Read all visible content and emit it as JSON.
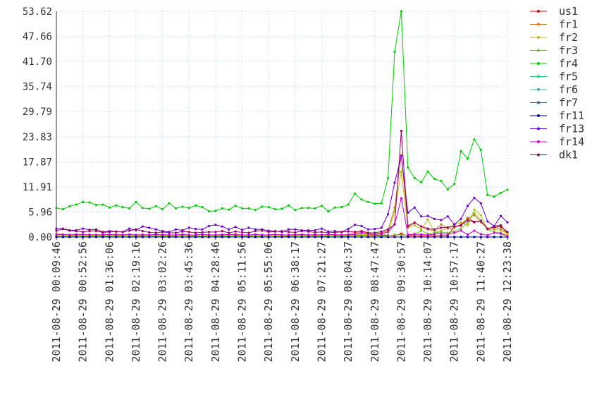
{
  "chart_data": {
    "type": "line",
    "categories": [
      "2011-08-29 00:09:46",
      null,
      null,
      null,
      "2011-08-29 00:52:56",
      null,
      null,
      null,
      "2011-08-29 01:36:06",
      null,
      null,
      null,
      "2011-08-29 02:19:16",
      null,
      null,
      null,
      "2011-08-29 03:02:26",
      null,
      null,
      null,
      "2011-08-29 03:45:36",
      null,
      null,
      null,
      "2011-08-29 04:28:46",
      null,
      null,
      null,
      "2011-08-29 05:11:56",
      null,
      null,
      null,
      "2011-08-29 05:55:06",
      null,
      null,
      null,
      "2011-08-29 06:38:17",
      null,
      null,
      null,
      "2011-08-29 07:21:27",
      null,
      null,
      null,
      "2011-08-29 08:04:37",
      null,
      null,
      null,
      "2011-08-29 08:47:47",
      null,
      null,
      null,
      "2011-08-29 09:30:57",
      null,
      null,
      null,
      "2011-08-29 10:14:07",
      null,
      null,
      null,
      "2011-08-29 10:57:17",
      null,
      null,
      null,
      "2011-08-29 11:40:27",
      null,
      null,
      null,
      "2011-08-29 12:23:38"
    ],
    "ylim": [
      0,
      53.62
    ],
    "yticks": [
      {
        "value": 0,
        "label": "0.00"
      },
      5.96,
      11.91,
      17.87,
      23.83,
      29.79,
      35.74,
      {
        "value": 41.7,
        "label": "41.70"
      },
      47.66,
      53.62
    ],
    "grid": true,
    "legend": "right",
    "series": [
      {
        "name": "us1",
        "color": "#cc0000",
        "values": [
          0.3,
          0.2,
          0.2,
          0.3,
          0.2,
          0.2,
          0.3,
          0.2,
          0.2,
          0.2,
          0.3,
          0.2,
          0.2,
          0.2,
          0.3,
          0.2,
          0.2,
          0.2,
          0.2,
          0.3,
          0.2,
          0.2,
          0.2,
          0.3,
          0.2,
          0.2,
          0.2,
          0.3,
          0.2,
          0.2,
          0.2,
          0.2,
          0.3,
          0.2,
          0.2,
          0.2,
          0.2,
          0.3,
          0.2,
          0.2,
          0.2,
          0.2,
          0.3,
          0.2,
          0.2,
          0.3,
          0.4,
          0.3,
          0.3,
          0.5,
          0.4,
          0.3,
          0.8,
          0.2,
          0.3,
          0.2,
          0.3,
          0.2,
          0.4,
          0.3,
          2.5,
          2.7,
          4.5,
          3.6,
          3.8,
          1.8,
          2.6,
          2.8,
          0.8
        ]
      },
      {
        "name": "fr1",
        "color": "#cc7a22",
        "values": [
          0.8,
          0.6,
          0.5,
          0.7,
          0.5,
          0.6,
          0.5,
          0.6,
          0.5,
          0.7,
          0.5,
          0.6,
          0.5,
          0.6,
          0.5,
          0.5,
          0.6,
          0.5,
          0.5,
          0.6,
          0.5,
          0.5,
          0.6,
          0.5,
          0.5,
          0.6,
          0.5,
          0.7,
          0.5,
          0.5,
          0.6,
          0.5,
          0.5,
          0.6,
          0.5,
          0.5,
          0.6,
          0.5,
          0.5,
          0.6,
          0.5,
          0.5,
          0.6,
          0.5,
          0.6,
          1.0,
          1.2,
          0.8,
          0.7,
          1.0,
          1.5,
          7.0,
          19.5,
          2.8,
          3.4,
          2.5,
          1.8,
          1.5,
          3.0,
          2.0,
          2.2,
          3.0,
          4.4,
          5.2,
          3.5,
          2.0,
          2.3,
          2.0,
          0.8
        ]
      },
      {
        "name": "fr2",
        "color": "#bbbb11",
        "values": [
          0.3,
          0.3,
          0.3,
          0.3,
          0.3,
          0.3,
          0.3,
          0.3,
          0.3,
          0.3,
          0.3,
          0.3,
          0.3,
          0.3,
          0.3,
          0.3,
          0.3,
          0.3,
          0.3,
          0.3,
          0.3,
          0.3,
          0.3,
          0.3,
          0.3,
          0.3,
          0.3,
          0.3,
          0.3,
          0.3,
          0.3,
          0.3,
          0.3,
          0.3,
          0.3,
          0.3,
          0.3,
          0.3,
          0.3,
          0.3,
          0.3,
          0.3,
          0.3,
          0.3,
          0.3,
          0.5,
          0.7,
          0.5,
          0.5,
          0.8,
          1.2,
          6.0,
          15.5,
          2.2,
          2.8,
          1.8,
          4.2,
          1.2,
          1.5,
          2.2,
          3.0,
          3.5,
          2.8,
          6.5,
          5.2,
          1.8,
          1.8,
          1.6,
          0.8
        ]
      },
      {
        "name": "fr3",
        "color": "#77bb22",
        "values": [
          0.2,
          0.2,
          0.2,
          0.2,
          0.2,
          0.2,
          0.2,
          0.2,
          0.2,
          0.2,
          0.2,
          0.2,
          0.2,
          0.2,
          0.2,
          0.2,
          0.2,
          0.2,
          0.2,
          0.2,
          0.2,
          0.2,
          0.2,
          0.2,
          0.2,
          0.2,
          0.2,
          0.2,
          0.2,
          0.2,
          0.2,
          0.2,
          0.2,
          0.2,
          0.2,
          0.2,
          0.2,
          0.2,
          0.2,
          0.2,
          0.2,
          0.2,
          0.2,
          0.2,
          0.2,
          0.2,
          0.3,
          0.2,
          0.2,
          0.2,
          0.3,
          0.5,
          0.5,
          0.4,
          0.6,
          1.5,
          0.8,
          1.0,
          1.2,
          1.0,
          1.3,
          2.0,
          3.5,
          5.6,
          4.0,
          1.8,
          1.2,
          1.0,
          0.3
        ]
      },
      {
        "name": "fr4",
        "color": "#00cc00",
        "values": [
          6.9,
          6.6,
          7.3,
          7.7,
          8.3,
          8.2,
          7.6,
          7.7,
          7.0,
          7.5,
          7.1,
          6.8,
          8.3,
          6.9,
          6.7,
          7.3,
          6.6,
          8.0,
          6.8,
          7.2,
          6.9,
          7.5,
          7.1,
          6.1,
          6.2,
          6.8,
          6.5,
          7.4,
          6.8,
          6.8,
          6.4,
          7.2,
          7.1,
          6.6,
          6.7,
          7.5,
          6.4,
          6.9,
          6.9,
          6.8,
          7.4,
          6.1,
          7.0,
          7.1,
          7.7,
          10.3,
          8.9,
          8.3,
          7.9,
          8.0,
          14.0,
          44.0,
          53.62,
          16.5,
          14.0,
          13.0,
          15.5,
          13.8,
          13.3,
          11.3,
          12.6,
          20.4,
          18.6,
          23.2,
          20.7,
          10.0,
          9.6,
          10.5,
          11.2
        ]
      },
      {
        "name": "fr5",
        "color": "#22cc77",
        "values": [
          0,
          0,
          0,
          0,
          0,
          0,
          0,
          0,
          0,
          0,
          0,
          0,
          0,
          0,
          0,
          0,
          0,
          0,
          0,
          0,
          0,
          0,
          0,
          0,
          0,
          0,
          0,
          0,
          0,
          0,
          0,
          0,
          0,
          0,
          0,
          0,
          0,
          0,
          0,
          0,
          0,
          0,
          0,
          0,
          0,
          0,
          0,
          0,
          0,
          0,
          0,
          0,
          0,
          0,
          0,
          0,
          0,
          0,
          0,
          0,
          0,
          0,
          0,
          0,
          0,
          0,
          0,
          0,
          0
        ]
      },
      {
        "name": "fr6",
        "color": "#22bbbb",
        "values": [
          0,
          0,
          0,
          0,
          0,
          0,
          0,
          0,
          0,
          0,
          0,
          0,
          0,
          0,
          0,
          0,
          0,
          0,
          0,
          0,
          0,
          0,
          0,
          0,
          0,
          0,
          0,
          0,
          0,
          0,
          0,
          0,
          0,
          0,
          0,
          0,
          0,
          0,
          0,
          0,
          0,
          0,
          0,
          0,
          0,
          0,
          0,
          0,
          0,
          0,
          0,
          0,
          0,
          0,
          0,
          0,
          0,
          0,
          0,
          0,
          0,
          0,
          0,
          0,
          0,
          0,
          0,
          0,
          0
        ]
      },
      {
        "name": "fr7",
        "color": "#2266aa",
        "values": [
          0,
          0,
          0,
          0,
          0,
          0,
          0,
          0,
          0,
          0,
          0,
          0,
          0,
          0,
          0,
          0,
          0,
          0,
          0,
          0,
          0,
          0,
          0,
          0,
          0,
          0,
          0,
          0,
          0,
          0,
          0,
          0,
          0,
          0,
          0,
          0,
          0,
          0,
          0,
          0,
          0,
          0,
          0,
          0,
          0,
          0,
          0,
          0,
          0,
          0,
          0,
          0,
          0,
          0,
          0,
          0,
          0,
          0,
          0,
          0,
          0,
          0,
          0,
          0,
          0,
          0,
          0,
          0,
          0
        ]
      },
      {
        "name": "fr11",
        "color": "#0000aa",
        "values": [
          0,
          0,
          0,
          0,
          0,
          0,
          0,
          0,
          0,
          0,
          0,
          0,
          0,
          0,
          0,
          0,
          0,
          0,
          0,
          0,
          0,
          0,
          0,
          0,
          0,
          0,
          0,
          0,
          0,
          0,
          0,
          0,
          0,
          0,
          0,
          0,
          0,
          0,
          0,
          0,
          0,
          0,
          0,
          0,
          0,
          0,
          0,
          0,
          0,
          0,
          0,
          0,
          0,
          0,
          0,
          0,
          0,
          0,
          0,
          0,
          0,
          0,
          0,
          0,
          0,
          0,
          0,
          0,
          0
        ]
      },
      {
        "name": "fr13",
        "color": "#6a00cc",
        "values": [
          2.0,
          2.0,
          1.6,
          1.6,
          2.0,
          1.7,
          1.8,
          1.2,
          1.4,
          1.3,
          1.2,
          2.0,
          1.6,
          2.5,
          2.2,
          1.8,
          1.4,
          1.2,
          1.8,
          1.6,
          2.2,
          1.9,
          1.8,
          2.6,
          2.9,
          2.5,
          1.8,
          2.4,
          1.7,
          2.2,
          1.8,
          1.8,
          1.5,
          1.4,
          1.2,
          1.8,
          1.8,
          1.6,
          1.6,
          1.6,
          2.0,
          1.3,
          1.4,
          1.2,
          1.9,
          2.9,
          2.6,
          1.8,
          1.9,
          2.2,
          5.4,
          12.9,
          19.2,
          5.8,
          7.0,
          4.9,
          5.0,
          4.3,
          4.0,
          4.9,
          3.0,
          4.3,
          7.4,
          9.3,
          8.0,
          3.7,
          2.6,
          5.0,
          3.5
        ]
      },
      {
        "name": "fr14",
        "color": "#cc00cc",
        "values": [
          0.5,
          0.6,
          0.5,
          0.5,
          0.6,
          0.5,
          0.5,
          0.5,
          0.6,
          0.5,
          0.5,
          0.6,
          0.5,
          0.5,
          0.5,
          0.6,
          0.5,
          0.5,
          0.5,
          0.6,
          0.5,
          0.5,
          0.6,
          0.5,
          0.5,
          0.5,
          0.6,
          0.5,
          0.5,
          0.5,
          0.6,
          0.5,
          0.5,
          0.6,
          0.5,
          0.5,
          0.5,
          0.6,
          0.5,
          0.5,
          0.5,
          0.6,
          0.5,
          0.5,
          0.5,
          0.6,
          1.0,
          0.7,
          0.6,
          0.8,
          1.2,
          3.0,
          9.2,
          0.5,
          0.7,
          0.6,
          0.5,
          0.7,
          0.8,
          0.6,
          1.0,
          1.5,
          0.6,
          1.5,
          0.7,
          0.4,
          1.0,
          0.8,
          0.2
        ]
      },
      {
        "name": "dk1",
        "color": "#990066",
        "values": [
          1.5,
          1.9,
          1.5,
          1.4,
          1.2,
          1.4,
          1.4,
          1.1,
          1.2,
          1.3,
          1.2,
          1.5,
          1.8,
          1.4,
          1.1,
          1.0,
          1.2,
          1.0,
          1.0,
          1.3,
          1.2,
          1.0,
          1.1,
          1.2,
          1.2,
          1.4,
          1.0,
          1.3,
          1.1,
          1.0,
          1.4,
          1.5,
          1.2,
          1.3,
          1.4,
          1.2,
          1.1,
          1.4,
          1.3,
          1.1,
          1.2,
          1.0,
          1.1,
          1.2,
          1.3,
          1.2,
          1.4,
          1.0,
          1.0,
          1.3,
          1.8,
          3.0,
          25.2,
          2.5,
          3.4,
          2.5,
          2.0,
          1.8,
          2.2,
          2.3,
          2.5,
          2.8,
          4.0,
          3.5,
          3.8,
          2.0,
          2.3,
          2.5,
          1.2
        ]
      }
    ]
  }
}
